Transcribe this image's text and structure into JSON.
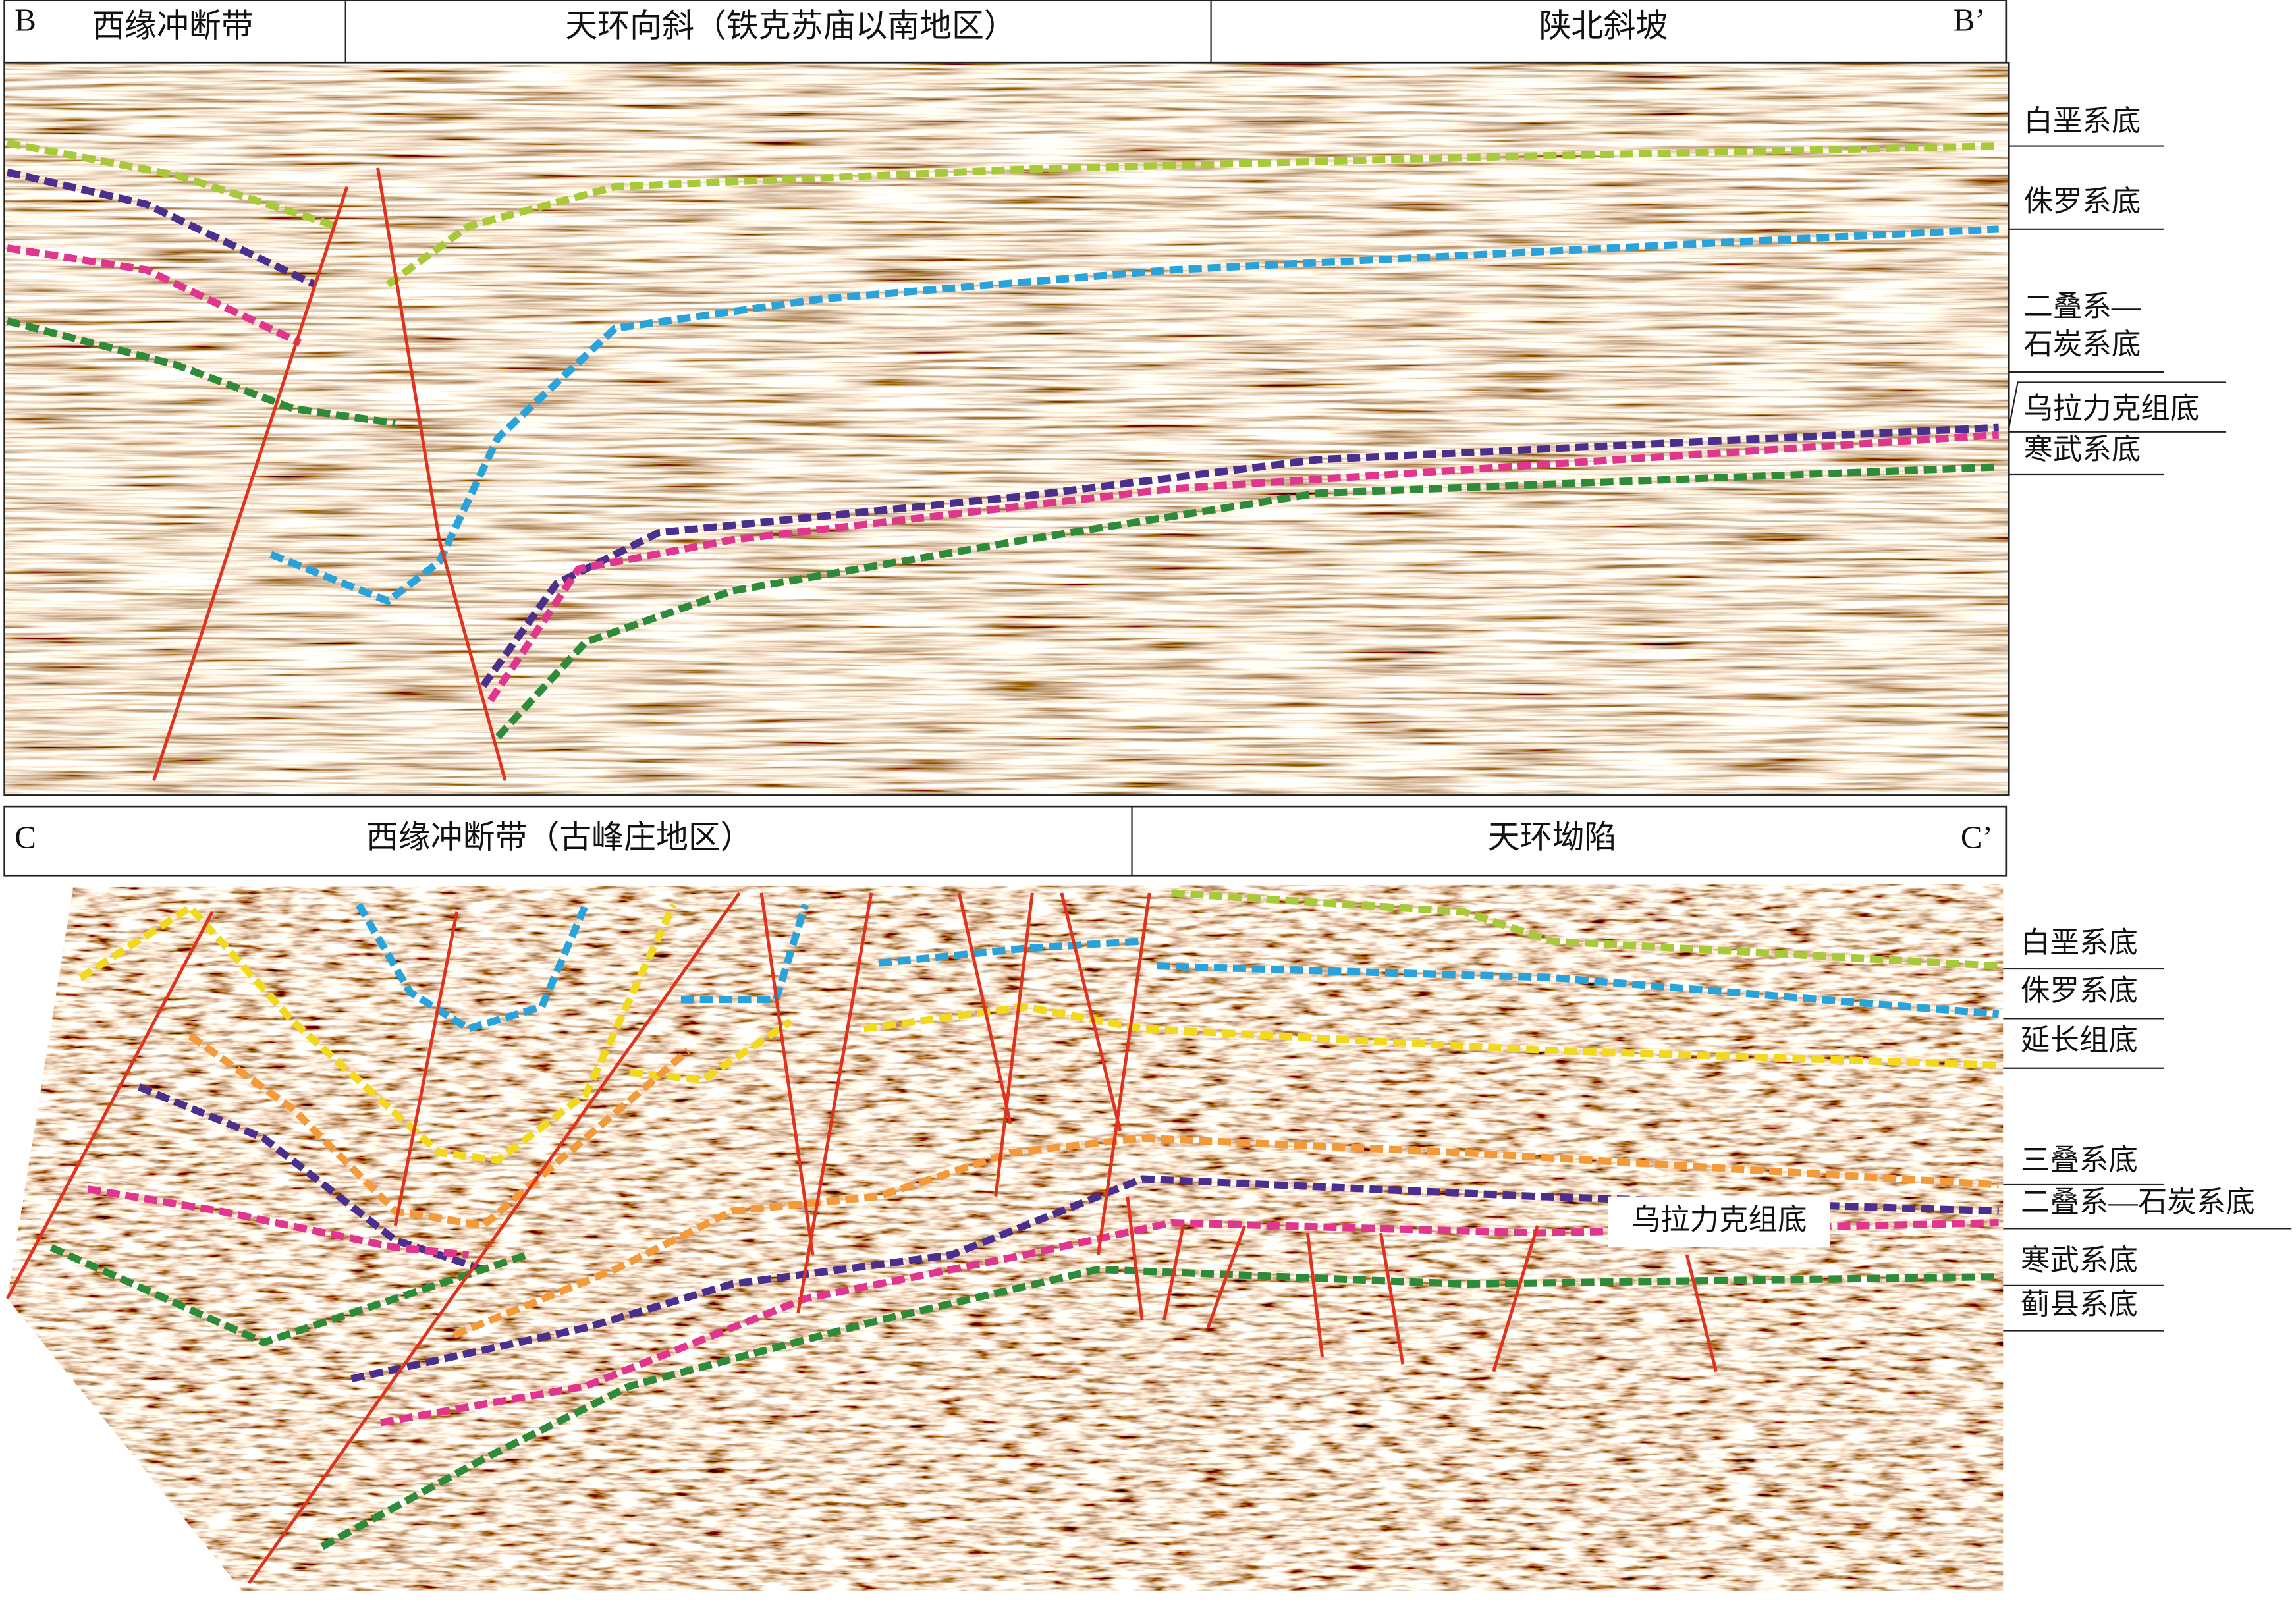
{
  "panel_b": {
    "header": {
      "start": "B",
      "sections": [
        "西缘冲断带",
        "天环向斜（铁克苏庙以南地区）",
        "陕北斜坡"
      ],
      "end": "B’"
    },
    "horizon_labels": [
      "白垩系底",
      "侏罗系底",
      "二叠系—",
      "石炭系底",
      "乌拉力克组底",
      "寒武系底"
    ]
  },
  "panel_c": {
    "header": {
      "start": "C",
      "sections": [
        "西缘冲断带（古峰庄地区）",
        "天环坳陷"
      ],
      "end": "C’"
    },
    "horizon_labels": [
      "白垩系底",
      "侏罗系底",
      "延长组底",
      "三叠系底",
      "二叠系—石炭系底",
      "寒武系底",
      "蓟县系底"
    ],
    "callout": "乌拉力克组底"
  }
}
